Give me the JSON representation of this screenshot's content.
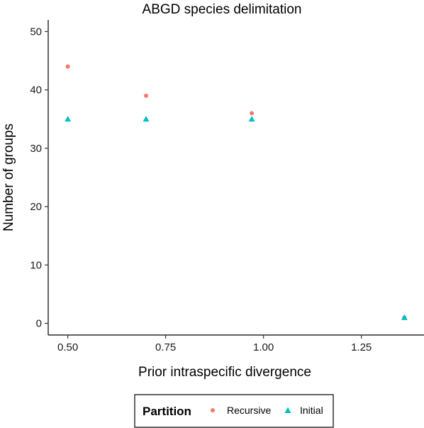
{
  "chart_data": {
    "type": "scatter",
    "title": "ABGD species delimitation",
    "xlabel": "Prior intraspecific divergence",
    "ylabel": "Number of groups",
    "xlim": [
      0.45,
      1.41
    ],
    "ylim": [
      -2,
      52
    ],
    "xticks": [
      0.5,
      0.75,
      1.0,
      1.25
    ],
    "xtick_labels": [
      "0.50",
      "0.75",
      "1.00",
      "1.25"
    ],
    "yticks": [
      0,
      10,
      20,
      30,
      40,
      50
    ],
    "ytick_labels": [
      "0",
      "10",
      "20",
      "30",
      "40",
      "50"
    ],
    "grid": false,
    "legend": {
      "title": "Partition",
      "position": "bottom",
      "entries": [
        {
          "label": "Recursive",
          "shape": "circle",
          "color": "#F8766D"
        },
        {
          "label": "Initial",
          "shape": "triangle",
          "color": "#00BFC4"
        }
      ]
    },
    "series": [
      {
        "name": "Recursive",
        "shape": "circle",
        "color": "#F8766D",
        "points": [
          {
            "x": 0.5,
            "y": 44
          },
          {
            "x": 0.7,
            "y": 39
          },
          {
            "x": 0.97,
            "y": 36
          },
          {
            "x": 1.36,
            "y": 1
          }
        ]
      },
      {
        "name": "Initial",
        "shape": "triangle",
        "color": "#00BFC4",
        "points": [
          {
            "x": 0.5,
            "y": 35
          },
          {
            "x": 0.7,
            "y": 35
          },
          {
            "x": 0.97,
            "y": 35
          },
          {
            "x": 1.36,
            "y": 1
          }
        ]
      }
    ]
  }
}
